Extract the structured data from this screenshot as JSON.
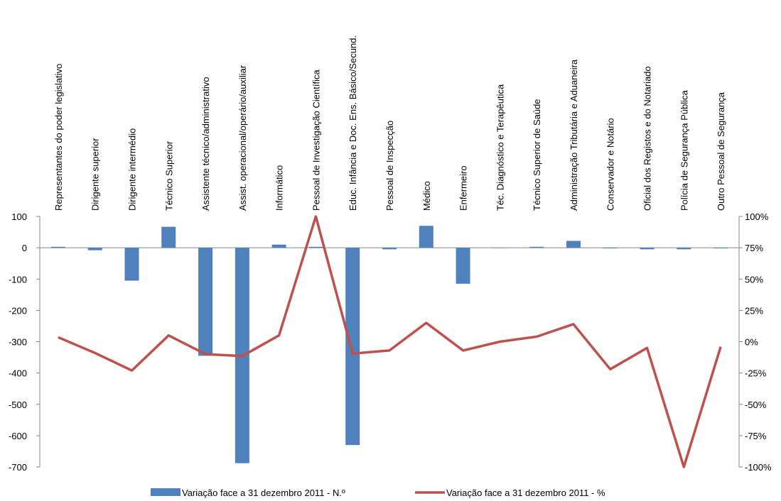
{
  "chart_data": {
    "type": "bar",
    "categories": [
      "Representantes do poder legislativo",
      "Dirigente superior",
      "Dirigente intermédio",
      "Técnico Superior",
      "Assistente técnico/administrativo",
      "Assist. operacional/operário/auxiliar",
      "Informático",
      "Pessoal de Investigação Científica",
      "Educ. Infância e Doc. Ens. Básico/Secund.",
      "Pessoal de Inspecção",
      "Médico",
      "Enfermeiro",
      "Téc. Diagnóstico e Terapêutica",
      "Técnico Superior de Saúde",
      "Administração Tributária e Aduaneira",
      "Conservador e Notário",
      "Oficial dos Registos e do Notariado",
      "Polícia de Segurança Pública",
      "Outro Pessoal de Segurança"
    ],
    "series": [
      {
        "name": "Variação face a 31 dezembro 2011 - N.º",
        "type": "bar",
        "axis": "left",
        "color": "#4F81BD",
        "values": [
          3,
          -8,
          -105,
          67,
          -345,
          -688,
          10,
          3,
          -630,
          -5,
          70,
          -115,
          0,
          3,
          22,
          -2,
          -5,
          -5,
          -2
        ]
      },
      {
        "name": "Variação face a 31 dezembro 2011 - %",
        "type": "line",
        "axis": "right",
        "color": "#C0504D",
        "values": [
          3.5,
          -9,
          -23,
          5,
          -10,
          -11.5,
          5,
          100,
          -9.5,
          -7,
          15,
          -7,
          0,
          4,
          14,
          -22,
          -5,
          -100,
          -4
        ]
      }
    ],
    "y_left": {
      "ylim": [
        -700,
        100
      ],
      "ticks": [
        "100",
        "0",
        "-100",
        "-200",
        "-300",
        "-400",
        "-500",
        "-600",
        "-700"
      ]
    },
    "y_right": {
      "ylim": [
        -100,
        100
      ],
      "ticks": [
        "100%",
        "75%",
        "50%",
        "25%",
        "0%",
        "-25%",
        "-50%",
        "-75%",
        "-100%"
      ]
    },
    "grid": false,
    "legend_position": "bottom"
  }
}
